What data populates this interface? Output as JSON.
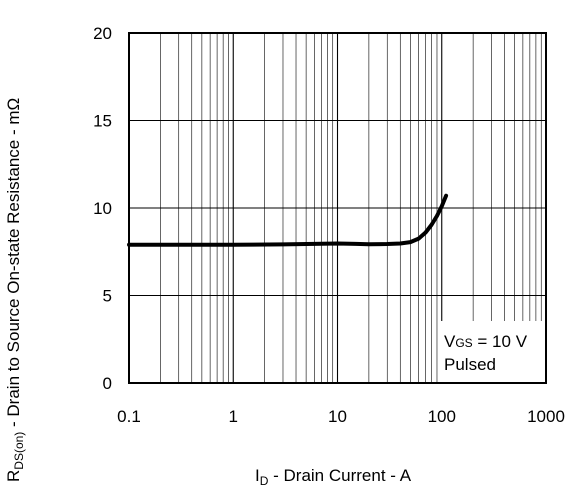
{
  "chart_data": {
    "type": "line",
    "xlabel": {
      "main": "I",
      "sub": "D",
      "rest": " - Drain Current - A"
    },
    "ylabel": {
      "main": "R",
      "sub": "DS(on)",
      "rest": " - Drain to Source On-state Resistance - mΩ"
    },
    "xscale": "log",
    "xlim": [
      0.1,
      1000
    ],
    "ylim": [
      0,
      20
    ],
    "x_ticks": [
      0.1,
      1,
      10,
      100,
      1000
    ],
    "x_tick_labels": [
      "0.1",
      "1",
      "10",
      "100",
      "1000"
    ],
    "y_ticks": [
      0,
      5,
      10,
      15,
      20
    ],
    "y_tick_labels": [
      "0",
      "5",
      "10",
      "15",
      "20"
    ],
    "grid": true,
    "annotation": {
      "line1_main": "V",
      "line1_sub": "GS",
      "line1_rest": " = 10 V",
      "line2": "Pulsed"
    },
    "series": [
      {
        "color": "#000000",
        "points": [
          [
            0.1,
            7.9
          ],
          [
            0.3,
            7.9
          ],
          [
            1,
            7.9
          ],
          [
            3,
            7.92
          ],
          [
            10,
            7.97
          ],
          [
            15,
            7.95
          ],
          [
            20,
            7.93
          ],
          [
            30,
            7.94
          ],
          [
            40,
            7.97
          ],
          [
            50,
            8.05
          ],
          [
            60,
            8.25
          ],
          [
            70,
            8.6
          ],
          [
            80,
            9.05
          ],
          [
            90,
            9.55
          ],
          [
            100,
            10.1
          ],
          [
            110,
            10.7
          ]
        ]
      }
    ]
  }
}
